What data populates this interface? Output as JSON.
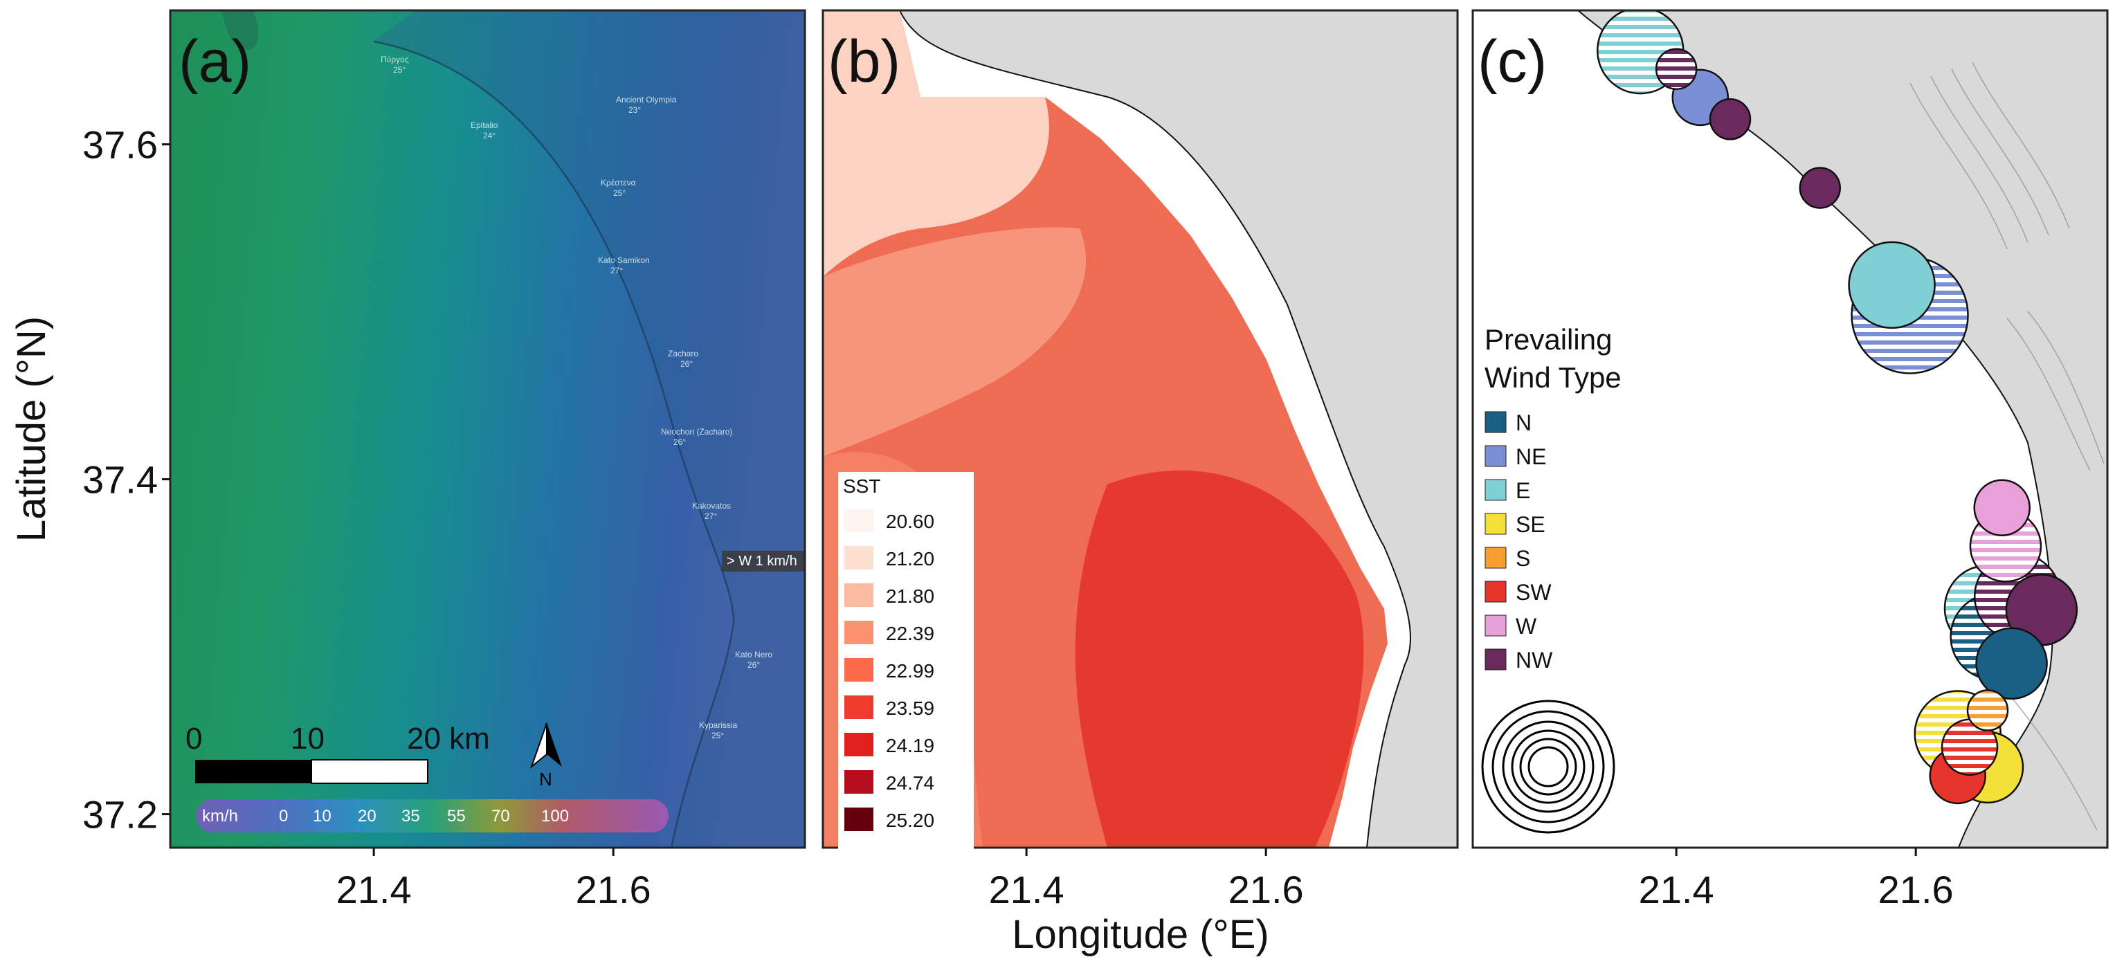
{
  "figure": {
    "y_axis_title": "Latitude (°N)",
    "x_axis_title": "Longitude (°E)",
    "x_ticks": [
      "21.4",
      "21.6"
    ],
    "y_ticks": [
      "37.6",
      "37.4",
      "37.2"
    ]
  },
  "panel_a": {
    "letter": "(a)",
    "towns": [
      {
        "name": "Πύργος",
        "temp": "25°"
      },
      {
        "name": "Ancient Olympia",
        "temp": "23°"
      },
      {
        "name": "Epitalio",
        "temp": "24°"
      },
      {
        "name": "Κρέστενα",
        "temp": "25°"
      },
      {
        "name": "Kato Samikon",
        "temp": "27°"
      },
      {
        "name": "Zacharo",
        "temp": "26°"
      },
      {
        "name": "Neochori (Zacharo)",
        "temp": "26°"
      },
      {
        "name": "Kakovatos",
        "temp": "27°"
      },
      {
        "name": "Kato Nero",
        "temp": "26°"
      },
      {
        "name": "Kyparissia",
        "temp": "25°"
      }
    ],
    "wind_tag": "> W 1 km/h",
    "scale_bar": {
      "labels": [
        "0",
        "10",
        "20 km"
      ]
    },
    "north_label": "N",
    "wind_scale": {
      "unit": "km/h",
      "values": [
        "0",
        "10",
        "20",
        "35",
        "55",
        "70",
        "100"
      ]
    }
  },
  "panel_b": {
    "letter": "(b)",
    "legend": {
      "title": "SST",
      "entries": [
        {
          "label": "20.60",
          "color": "#fff5f0"
        },
        {
          "label": "21.20",
          "color": "#fee0d2"
        },
        {
          "label": "21.80",
          "color": "#fcbba1"
        },
        {
          "label": "22.39",
          "color": "#fc9272"
        },
        {
          "label": "22.99",
          "color": "#fb6a4a"
        },
        {
          "label": "23.59",
          "color": "#ef3b2c"
        },
        {
          "label": "24.19",
          "color": "#e0201c"
        },
        {
          "label": "24.74",
          "color": "#b50f1d"
        },
        {
          "label": "25.20",
          "color": "#67000d"
        }
      ]
    }
  },
  "panel_c": {
    "letter": "(c)",
    "legend": {
      "title_line1": "Prevailing",
      "title_line2": "Wind Type",
      "entries": [
        {
          "label": "N",
          "color": "#1a5f84"
        },
        {
          "label": "NE",
          "color": "#7b8fd6"
        },
        {
          "label": "E",
          "color": "#7fcfd4"
        },
        {
          "label": "SE",
          "color": "#f5e03a"
        },
        {
          "label": "S",
          "color": "#f5a030"
        },
        {
          "label": "SW",
          "color": "#e8352b"
        },
        {
          "label": "W",
          "color": "#e8a0d8"
        },
        {
          "label": "NW",
          "color": "#6b2a5e"
        }
      ]
    }
  },
  "chart_data": {
    "type": "bubble-map",
    "title": "Prevailing Wind Type",
    "xlabel": "Longitude (°E)",
    "ylabel": "Latitude (°N)",
    "xlim": [
      21.23,
      21.76
    ],
    "ylim": [
      37.18,
      37.68
    ],
    "points": [
      {
        "lon": 21.37,
        "lat": 37.656,
        "type": "E",
        "style": "striped",
        "size": 4
      },
      {
        "lon": 21.4,
        "lat": 37.645,
        "type": "NW",
        "style": "striped",
        "size": 1
      },
      {
        "lon": 21.42,
        "lat": 37.628,
        "type": "NE",
        "style": "solid",
        "size": 2
      },
      {
        "lon": 21.445,
        "lat": 37.615,
        "type": "NW",
        "style": "solid",
        "size": 1
      },
      {
        "lon": 21.52,
        "lat": 37.574,
        "type": "NW",
        "style": "solid",
        "size": 1
      },
      {
        "lon": 21.595,
        "lat": 37.498,
        "type": "NE",
        "style": "striped",
        "size": 6
      },
      {
        "lon": 21.58,
        "lat": 37.516,
        "type": "E",
        "style": "solid",
        "size": 4
      },
      {
        "lon": 21.672,
        "lat": 37.383,
        "type": "W",
        "style": "solid",
        "size": 2
      },
      {
        "lon": 21.675,
        "lat": 37.36,
        "type": "W",
        "style": "striped",
        "size": 3
      },
      {
        "lon": 21.66,
        "lat": 37.323,
        "type": "E",
        "style": "striped",
        "size": 4
      },
      {
        "lon": 21.665,
        "lat": 37.306,
        "type": "N",
        "style": "striped",
        "size": 4
      },
      {
        "lon": 21.685,
        "lat": 37.33,
        "type": "NW",
        "style": "striped",
        "size": 4
      },
      {
        "lon": 21.705,
        "lat": 37.322,
        "type": "NW",
        "style": "solid",
        "size": 3
      },
      {
        "lon": 21.68,
        "lat": 37.29,
        "type": "N",
        "style": "solid",
        "size": 3
      },
      {
        "lon": 21.635,
        "lat": 37.248,
        "type": "SE",
        "style": "striped",
        "size": 4
      },
      {
        "lon": 21.66,
        "lat": 37.228,
        "type": "SE",
        "style": "solid",
        "size": 3
      },
      {
        "lon": 21.635,
        "lat": 37.223,
        "type": "SW",
        "style": "solid",
        "size": 2
      },
      {
        "lon": 21.645,
        "lat": 37.24,
        "type": "SW",
        "style": "striped",
        "size": 2
      },
      {
        "lon": 21.66,
        "lat": 37.262,
        "type": "S",
        "style": "striped",
        "size": 1
      }
    ]
  }
}
